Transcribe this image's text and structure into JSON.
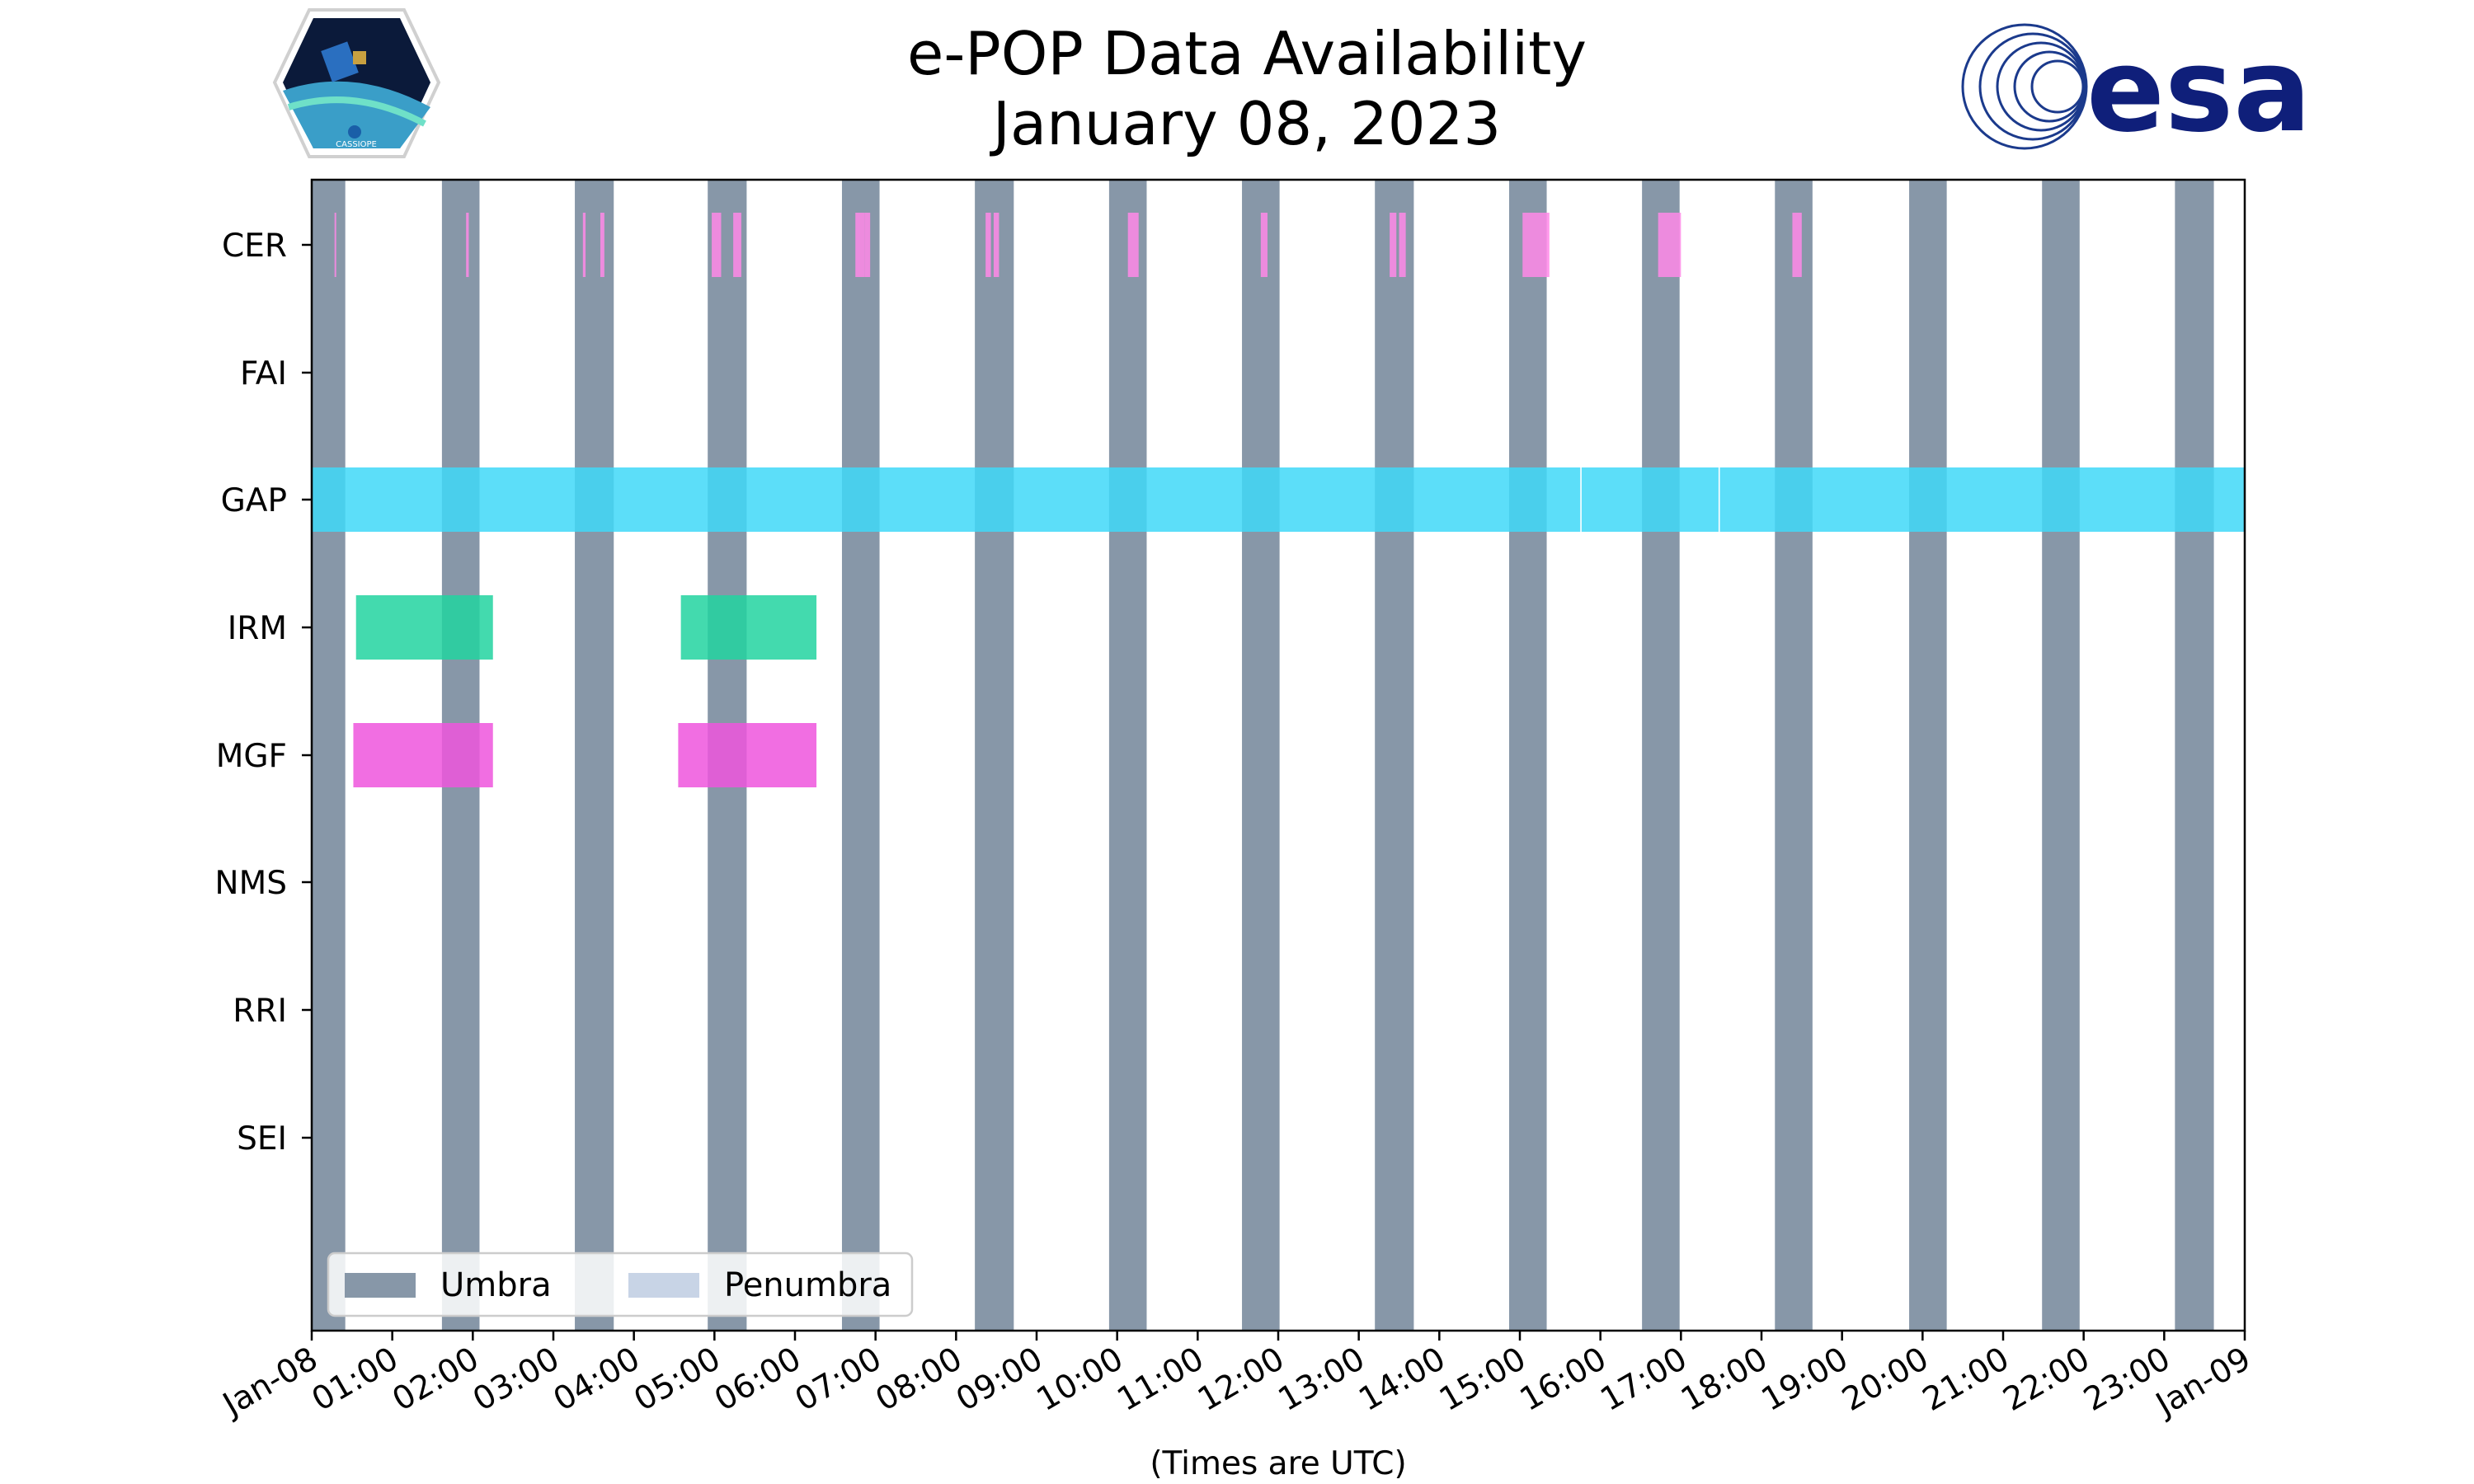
{
  "chart_data": {
    "type": "timeline",
    "title": "e-POP Data Availability",
    "subtitle": "January 08, 2023",
    "xlabel": "(Times are UTC)",
    "xlim": [
      "2023-01-08 00:00",
      "2023-01-09 00:00"
    ],
    "x_ticks": [
      "Jan-08",
      "01:00",
      "02:00",
      "03:00",
      "04:00",
      "05:00",
      "06:00",
      "07:00",
      "08:00",
      "09:00",
      "10:00",
      "11:00",
      "12:00",
      "13:00",
      "14:00",
      "15:00",
      "16:00",
      "17:00",
      "18:00",
      "19:00",
      "20:00",
      "21:00",
      "22:00",
      "23:00",
      "Jan-09"
    ],
    "categories": [
      "CER",
      "FAI",
      "GAP",
      "IRM",
      "MGF",
      "NMS",
      "RRI",
      "SEI"
    ],
    "umbra_intervals": [
      [
        "00:00",
        "00:25"
      ],
      [
        "01:37",
        "02:05"
      ],
      [
        "03:16",
        "03:45"
      ],
      [
        "04:55",
        "05:24"
      ],
      [
        "06:35",
        "07:03"
      ],
      [
        "08:14",
        "08:43"
      ],
      [
        "09:54",
        "10:22"
      ],
      [
        "11:33",
        "12:01"
      ],
      [
        "13:12",
        "13:41"
      ],
      [
        "14:52",
        "15:20"
      ],
      [
        "16:31",
        "16:59"
      ],
      [
        "18:10",
        "18:38"
      ],
      [
        "19:50",
        "20:18"
      ],
      [
        "21:29",
        "21:57"
      ],
      [
        "23:08",
        "23:37"
      ]
    ],
    "series": [
      {
        "name": "CER",
        "color": "#ff88e8",
        "intervals": [
          [
            "00:17",
            "00:18"
          ],
          [
            "01:55",
            "01:57"
          ],
          [
            "03:22",
            "03:24"
          ],
          [
            "03:35",
            "03:38"
          ],
          [
            "04:58",
            "05:05"
          ],
          [
            "05:14",
            "05:20"
          ],
          [
            "06:45",
            "06:52"
          ],
          [
            "06:52",
            "06:56"
          ],
          [
            "08:22",
            "08:26"
          ],
          [
            "08:28",
            "08:32"
          ],
          [
            "10:08",
            "10:16"
          ],
          [
            "11:47",
            "11:52"
          ],
          [
            "13:23",
            "13:28"
          ],
          [
            "13:30",
            "13:35"
          ],
          [
            "15:02",
            "15:22"
          ],
          [
            "16:43",
            "17:00"
          ],
          [
            "18:23",
            "18:30"
          ]
        ]
      },
      {
        "name": "FAI",
        "color": "#ff88e8",
        "intervals": []
      },
      {
        "name": "GAP",
        "color": "#40d8f8",
        "intervals": [
          [
            "00:00",
            "15:45"
          ],
          [
            "15:46",
            "17:28"
          ],
          [
            "17:29",
            "24:00"
          ]
        ]
      },
      {
        "name": "IRM",
        "color": "#22d4a0",
        "intervals": [
          [
            "00:33",
            "02:15"
          ],
          [
            "04:35",
            "06:16"
          ]
        ]
      },
      {
        "name": "MGF",
        "color": "#ee55dd",
        "intervals": [
          [
            "00:31",
            "02:15"
          ],
          [
            "04:33",
            "06:16"
          ]
        ]
      },
      {
        "name": "NMS",
        "color": "#ee55dd",
        "intervals": []
      },
      {
        "name": "RRI",
        "color": "#ee55dd",
        "intervals": []
      },
      {
        "name": "SEI",
        "color": "#ee55dd",
        "intervals": []
      }
    ],
    "legend": {
      "placement": "lower-left",
      "entries": [
        {
          "label": "Umbra",
          "color": "#8797a8"
        },
        {
          "label": "Penumbra",
          "color": "#c8d4e6"
        }
      ]
    },
    "grid": false
  },
  "logos": {
    "left": "CASSIOPE",
    "right": "esa"
  }
}
